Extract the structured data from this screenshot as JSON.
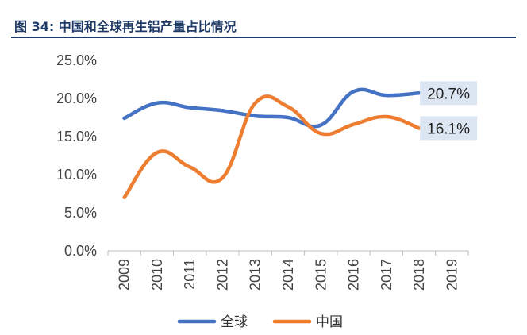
{
  "title": "图 34: 中国和全球再生铝产量占比情况",
  "chart_data": {
    "type": "line",
    "title": "图 34: 中国和全球再生铝产量占比情况",
    "categories": [
      "2009",
      "2010",
      "2011",
      "2012",
      "2013",
      "2014",
      "2015",
      "2016",
      "2017",
      "2018",
      "2019"
    ],
    "y_ticks": [
      "0.0%",
      "5.0%",
      "10.0%",
      "15.0%",
      "20.0%",
      "25.0%"
    ],
    "ylim": [
      0,
      25
    ],
    "grid": false,
    "legend_position": "bottom",
    "series": [
      {
        "name": "全球",
        "color": "#4472c4",
        "values": [
          17.4,
          19.4,
          18.8,
          18.4,
          17.7,
          17.5,
          16.5,
          20.9,
          20.4,
          20.7,
          null
        ],
        "end_label": "20.7%"
      },
      {
        "name": "中国",
        "color": "#ed7d31",
        "values": [
          7.0,
          12.9,
          11.0,
          9.6,
          19.4,
          18.9,
          15.4,
          16.6,
          17.6,
          16.1,
          null
        ],
        "end_label": "16.1%"
      }
    ]
  }
}
